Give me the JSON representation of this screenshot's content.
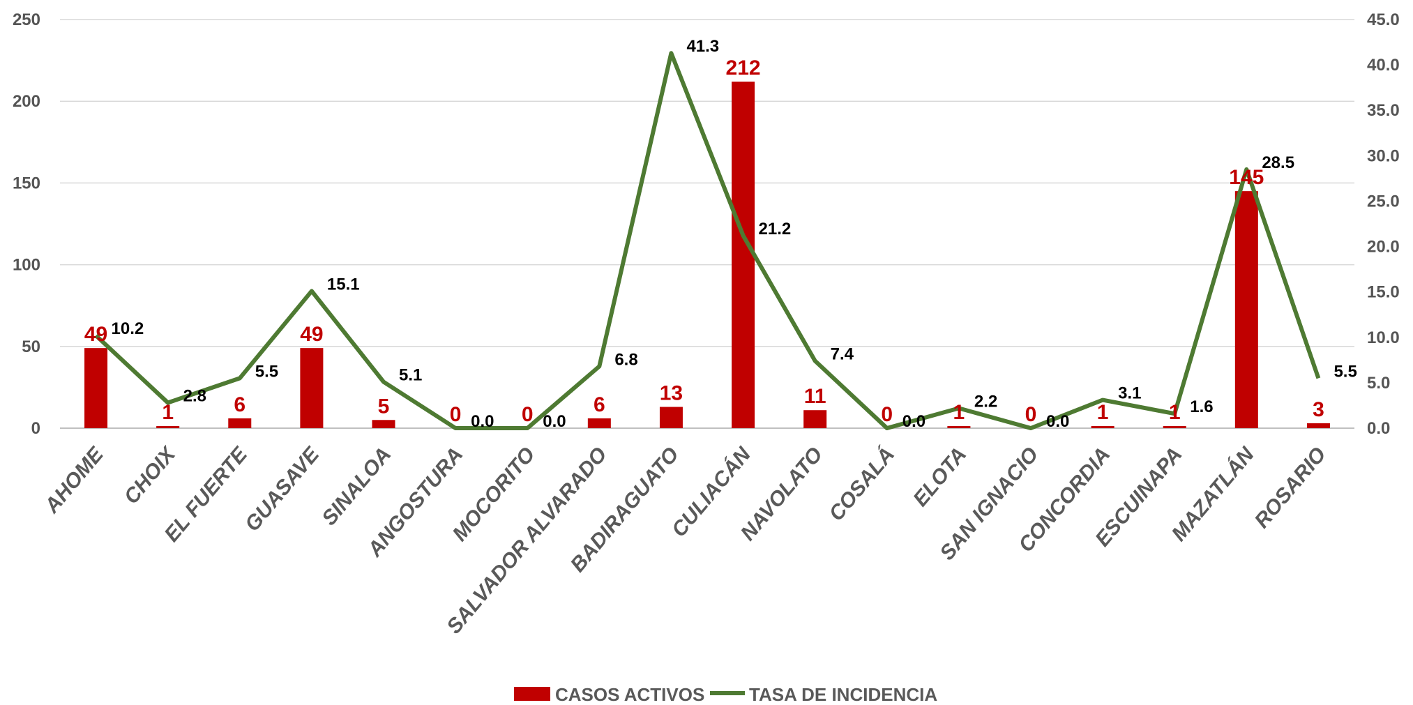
{
  "chart_data": {
    "type": "bar",
    "categories": [
      "AHOME",
      "CHOIX",
      "EL FUERTE",
      "GUASAVE",
      "SINALOA",
      "ANGOSTURA",
      "MOCORITO",
      "SALVADOR ALVARADO",
      "BADIRAGUATO",
      "CULIACÁN",
      "NAVOLATO",
      "COSALÁ",
      "ELOTA",
      "SAN IGNACIO",
      "CONCORDIA",
      "ESCUINAPA",
      "MAZATLÁN",
      "ROSARIO"
    ],
    "series": [
      {
        "name": "CASOS ACTIVOS",
        "type": "bar",
        "axis": "left",
        "color": "#c00000",
        "values": [
          49,
          1,
          6,
          49,
          5,
          0,
          0,
          6,
          13,
          212,
          11,
          0,
          1,
          0,
          1,
          1,
          145,
          3
        ],
        "labels": [
          "49",
          "1",
          "6",
          "49",
          "5",
          "0",
          "0",
          "6",
          "13",
          "212",
          "11",
          "0",
          "1",
          "0",
          "1",
          "1",
          "145",
          "3"
        ]
      },
      {
        "name": "TASA DE INCIDENCIA",
        "type": "line",
        "axis": "right",
        "color": "#4e7a32",
        "values": [
          10.2,
          2.8,
          5.5,
          15.1,
          5.1,
          0.0,
          0.0,
          6.8,
          41.3,
          21.2,
          7.4,
          0.0,
          2.2,
          0.0,
          3.1,
          1.6,
          28.5,
          5.5
        ],
        "labels": [
          "10.2",
          "2.8",
          "5.5",
          "15.1",
          "5.1",
          "0.0",
          "0.0",
          "6.8",
          "41.3",
          "21.2",
          "7.4",
          "0.0",
          "2.2",
          "0.0",
          "3.1",
          "1.6",
          "28.5",
          "5.5"
        ]
      }
    ],
    "y_left": {
      "lim": [
        0,
        250
      ],
      "ticks": [
        "0",
        "50",
        "100",
        "150",
        "200",
        "250"
      ]
    },
    "y_right": {
      "lim": [
        0,
        45
      ],
      "ticks": [
        "0.0",
        "5.0",
        "10.0",
        "15.0",
        "20.0",
        "25.0",
        "30.0",
        "35.0",
        "40.0",
        "45.0"
      ]
    },
    "grid": true,
    "legend_position": "bottom"
  }
}
